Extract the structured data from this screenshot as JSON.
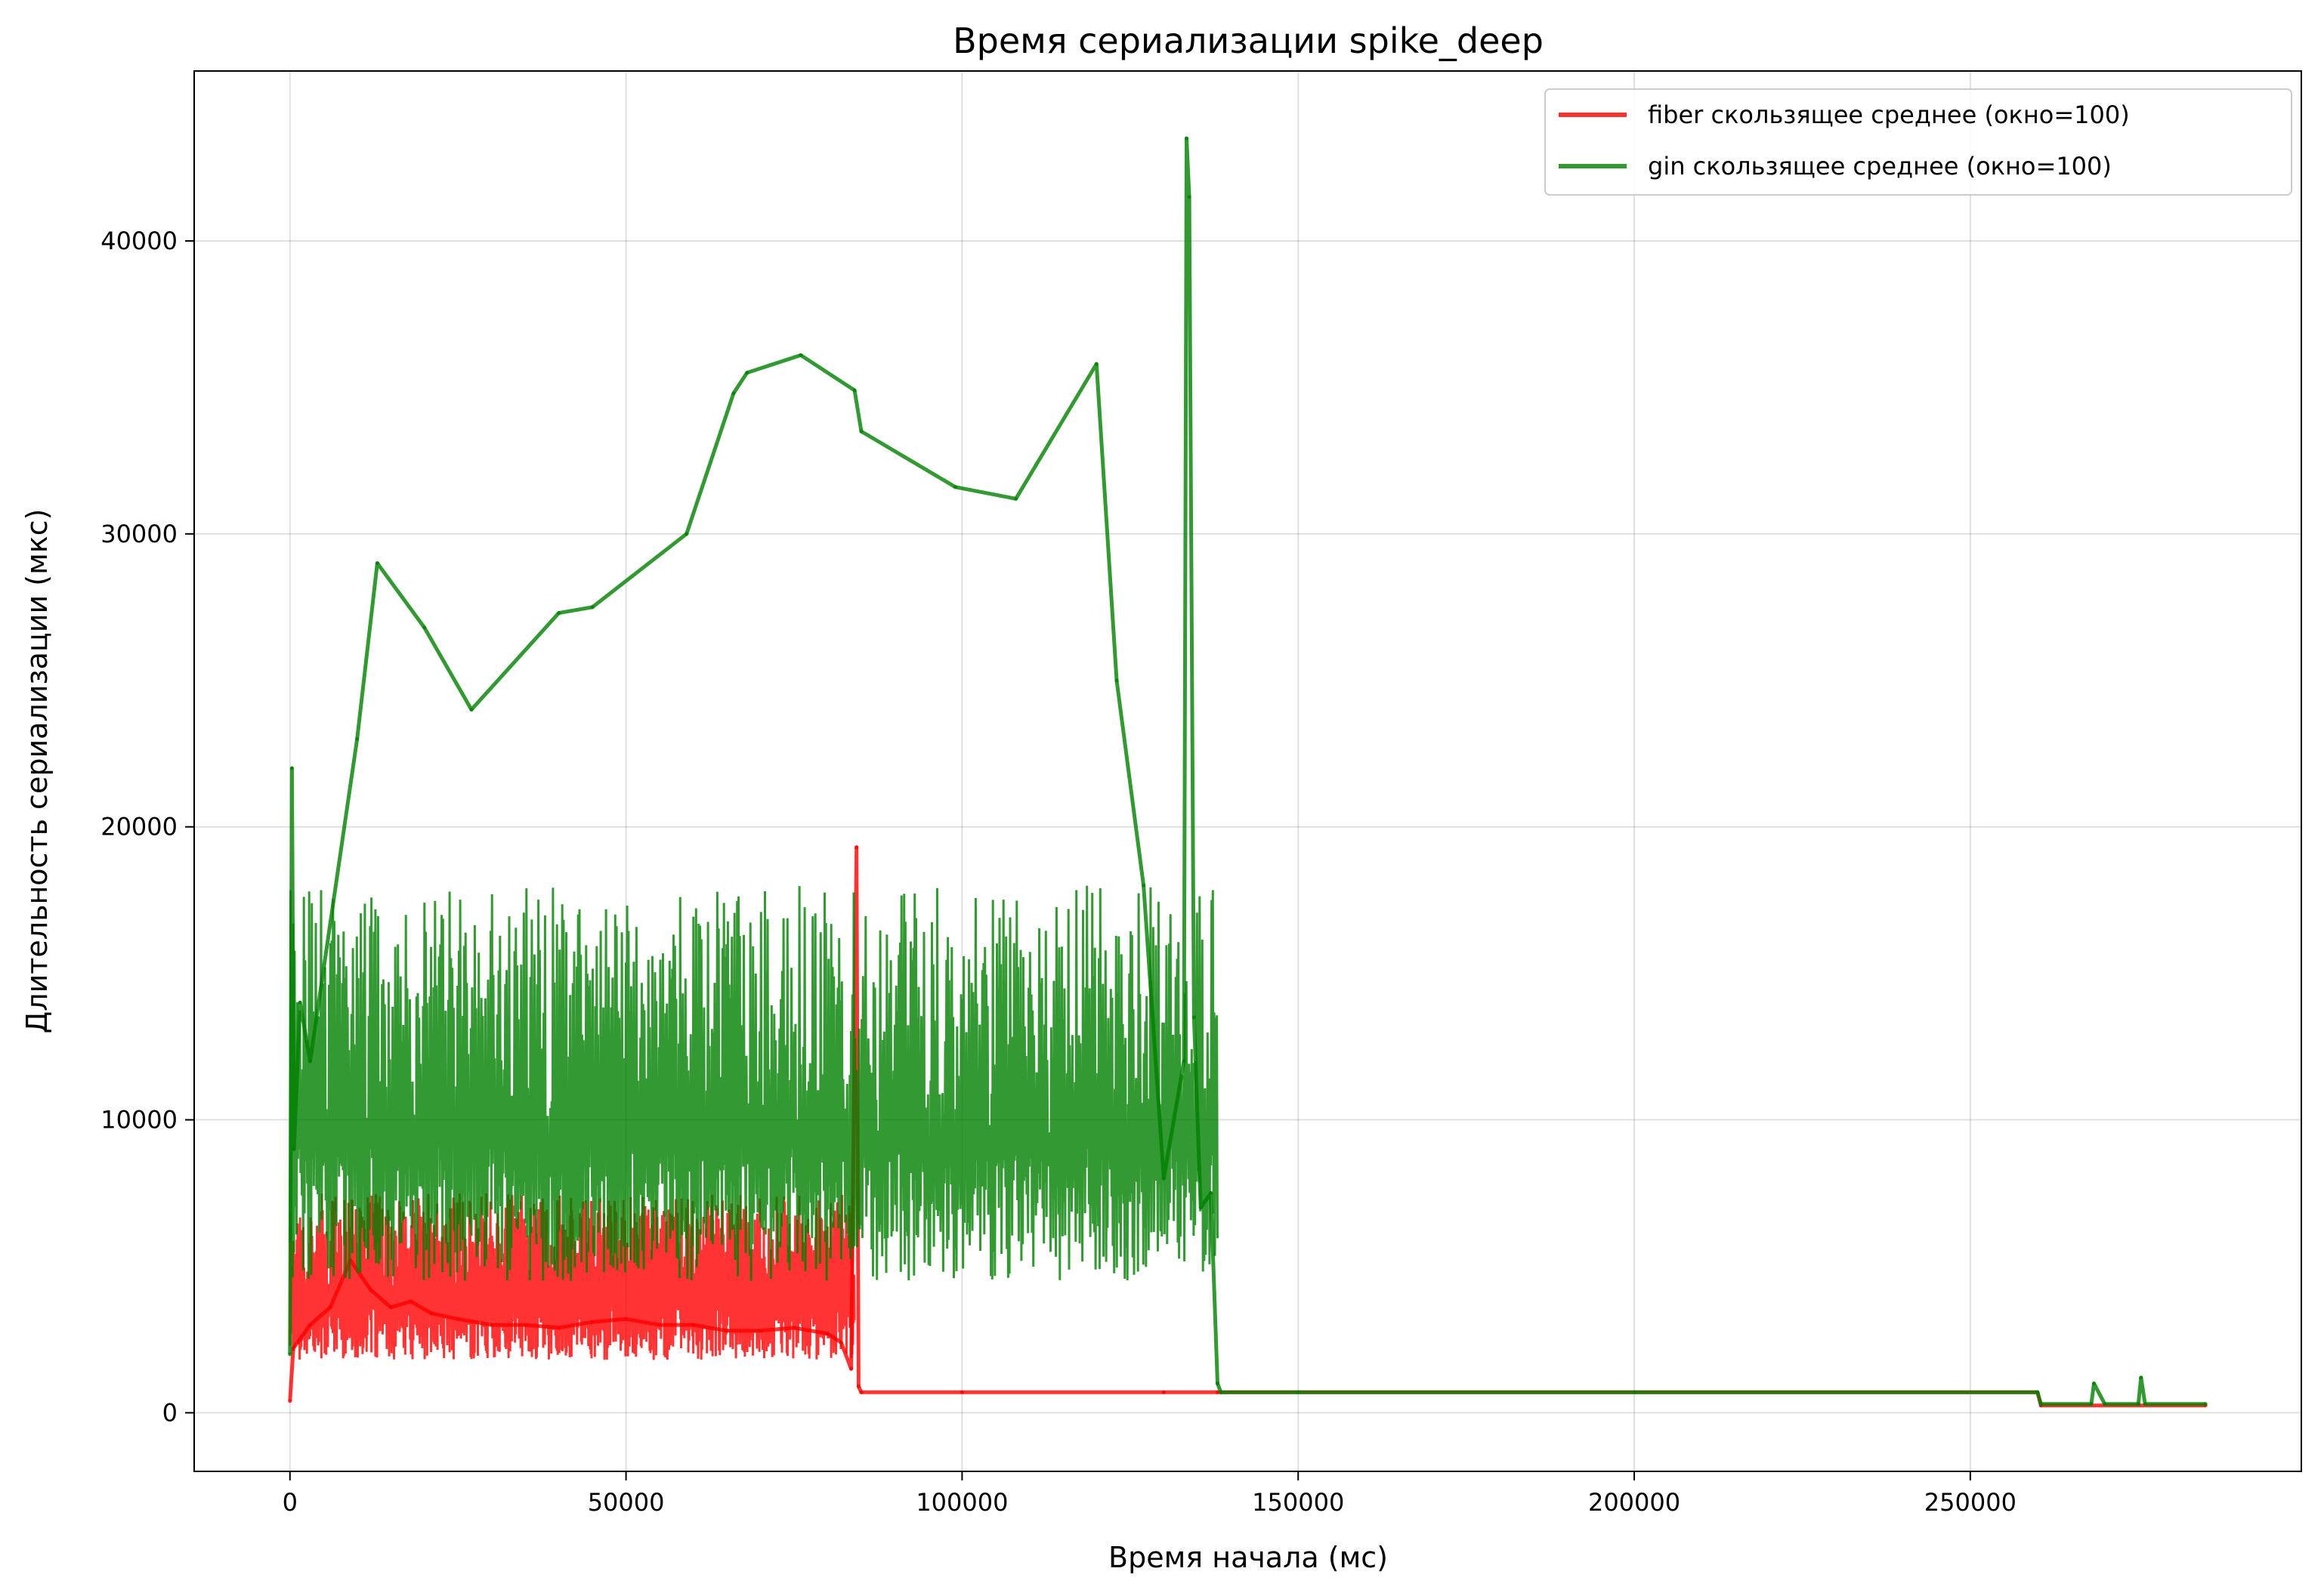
{
  "chart_data": {
    "type": "line",
    "title": "Время сериализации spike_deep",
    "xlabel": "Время начала (мс)",
    "ylabel": "Длительность сериализации (мкс)",
    "xlim": [
      -14250,
      299250
    ],
    "ylim": [
      -2000,
      45800
    ],
    "xticks": [
      0,
      50000,
      100000,
      150000,
      200000,
      250000
    ],
    "xtick_labels": [
      "0",
      "50000",
      "100000",
      "150000",
      "200000",
      "250000"
    ],
    "yticks": [
      0,
      10000,
      20000,
      30000,
      40000
    ],
    "ytick_labels": [
      "0",
      "10000",
      "20000",
      "30000",
      "40000"
    ],
    "grid": true,
    "legend_position": "top-right",
    "series": [
      {
        "name": "fiber скользящее среднее (окно=100)",
        "color": "#ff0000",
        "opacity": 0.8,
        "noise_band": {
          "x_start": 0,
          "x_end": 84000,
          "low": 1800,
          "high": 7500
        },
        "x": [
          0,
          500,
          3000,
          6000,
          9000,
          12000,
          15000,
          18000,
          21000,
          25000,
          30000,
          35000,
          40000,
          45000,
          50000,
          55000,
          60000,
          65000,
          70000,
          75000,
          80000,
          82000,
          83500,
          84300,
          84600,
          85000,
          100000,
          130000,
          138000,
          260000,
          260500,
          285000
        ],
        "y": [
          400,
          2200,
          3000,
          3600,
          5200,
          4200,
          3600,
          3800,
          3400,
          3200,
          3000,
          3000,
          2900,
          3100,
          3200,
          3000,
          3000,
          2800,
          2800,
          2900,
          2700,
          2400,
          1500,
          19300,
          900,
          700,
          700,
          700,
          700,
          700,
          250,
          250
        ]
      },
      {
        "name": "gin скользящее среднее (окно=100)",
        "color": "#008000",
        "opacity": 0.8,
        "noise_band": {
          "x_start": 0,
          "x_end": 138000,
          "low": 4500,
          "high": 18000
        },
        "x": [
          0,
          300,
          600,
          1500,
          3000,
          10000,
          13000,
          20000,
          27000,
          40000,
          45000,
          59000,
          66000,
          68000,
          76000,
          84000,
          85000,
          99000,
          108000,
          120000,
          123000,
          127000,
          130000,
          133000,
          133400,
          133800,
          134500,
          135500,
          137000,
          138000,
          138500,
          150000,
          200000,
          260000,
          260500,
          268000,
          268400,
          270000,
          275000,
          275400,
          276000,
          285000
        ],
        "y": [
          2000,
          22000,
          9000,
          14000,
          12000,
          23000,
          29000,
          26800,
          24000,
          27300,
          27500,
          30000,
          34800,
          35500,
          36100,
          34900,
          33500,
          31600,
          31200,
          35800,
          25000,
          18000,
          8000,
          12000,
          43500,
          41500,
          13500,
          7000,
          7500,
          1000,
          700,
          700,
          700,
          700,
          300,
          300,
          1000,
          300,
          300,
          1200,
          300,
          300
        ]
      }
    ]
  }
}
